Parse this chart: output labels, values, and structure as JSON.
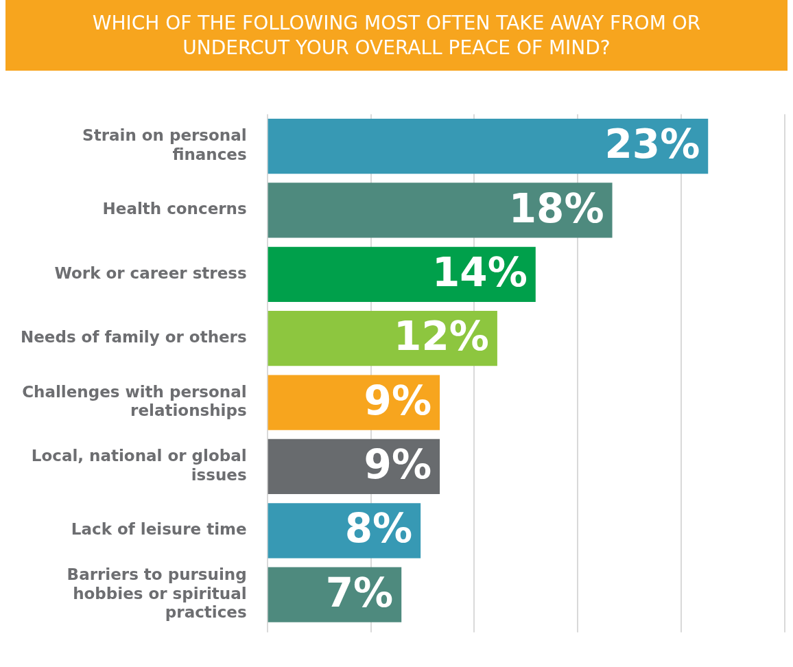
{
  "chart_data": {
    "type": "bar",
    "orientation": "horizontal",
    "title": "WHICH OF THE FOLLOWING MOST OFTEN TAKE AWAY FROM OR UNDERCUT YOUR OVERALL PEACE OF MIND?",
    "categories": [
      "Strain on personal finances",
      "Health concerns",
      "Work or career stress",
      "Needs of family or others",
      "Challenges with personal relationships",
      "Local, national or global issues",
      "Lack of leisure time",
      "Barriers to pursuing hobbies or spiritual practices"
    ],
    "values": [
      23,
      18,
      14,
      12,
      9,
      9,
      8,
      7
    ],
    "colors": [
      "#3799b4",
      "#4e8a7e",
      "#00a04b",
      "#8dc63f",
      "#f7a51e",
      "#686b6e",
      "#3799b4",
      "#4e8a7e"
    ],
    "value_labels": [
      "23%",
      "18%",
      "14%",
      "12%",
      "9%",
      "9%",
      "8%",
      "7%"
    ],
    "xlim": [
      0,
      27
    ],
    "xticks": [
      {
        "value": 0,
        "label": null
      },
      {
        "value": 5.4,
        "label": null
      },
      {
        "value": 10.8,
        "label": null
      },
      {
        "value": 16.2,
        "label": null
      },
      {
        "value": 21.6,
        "label": null
      },
      {
        "value": 27,
        "label": null
      }
    ],
    "grid": "x",
    "legend": false,
    "tick_labels": "y"
  }
}
